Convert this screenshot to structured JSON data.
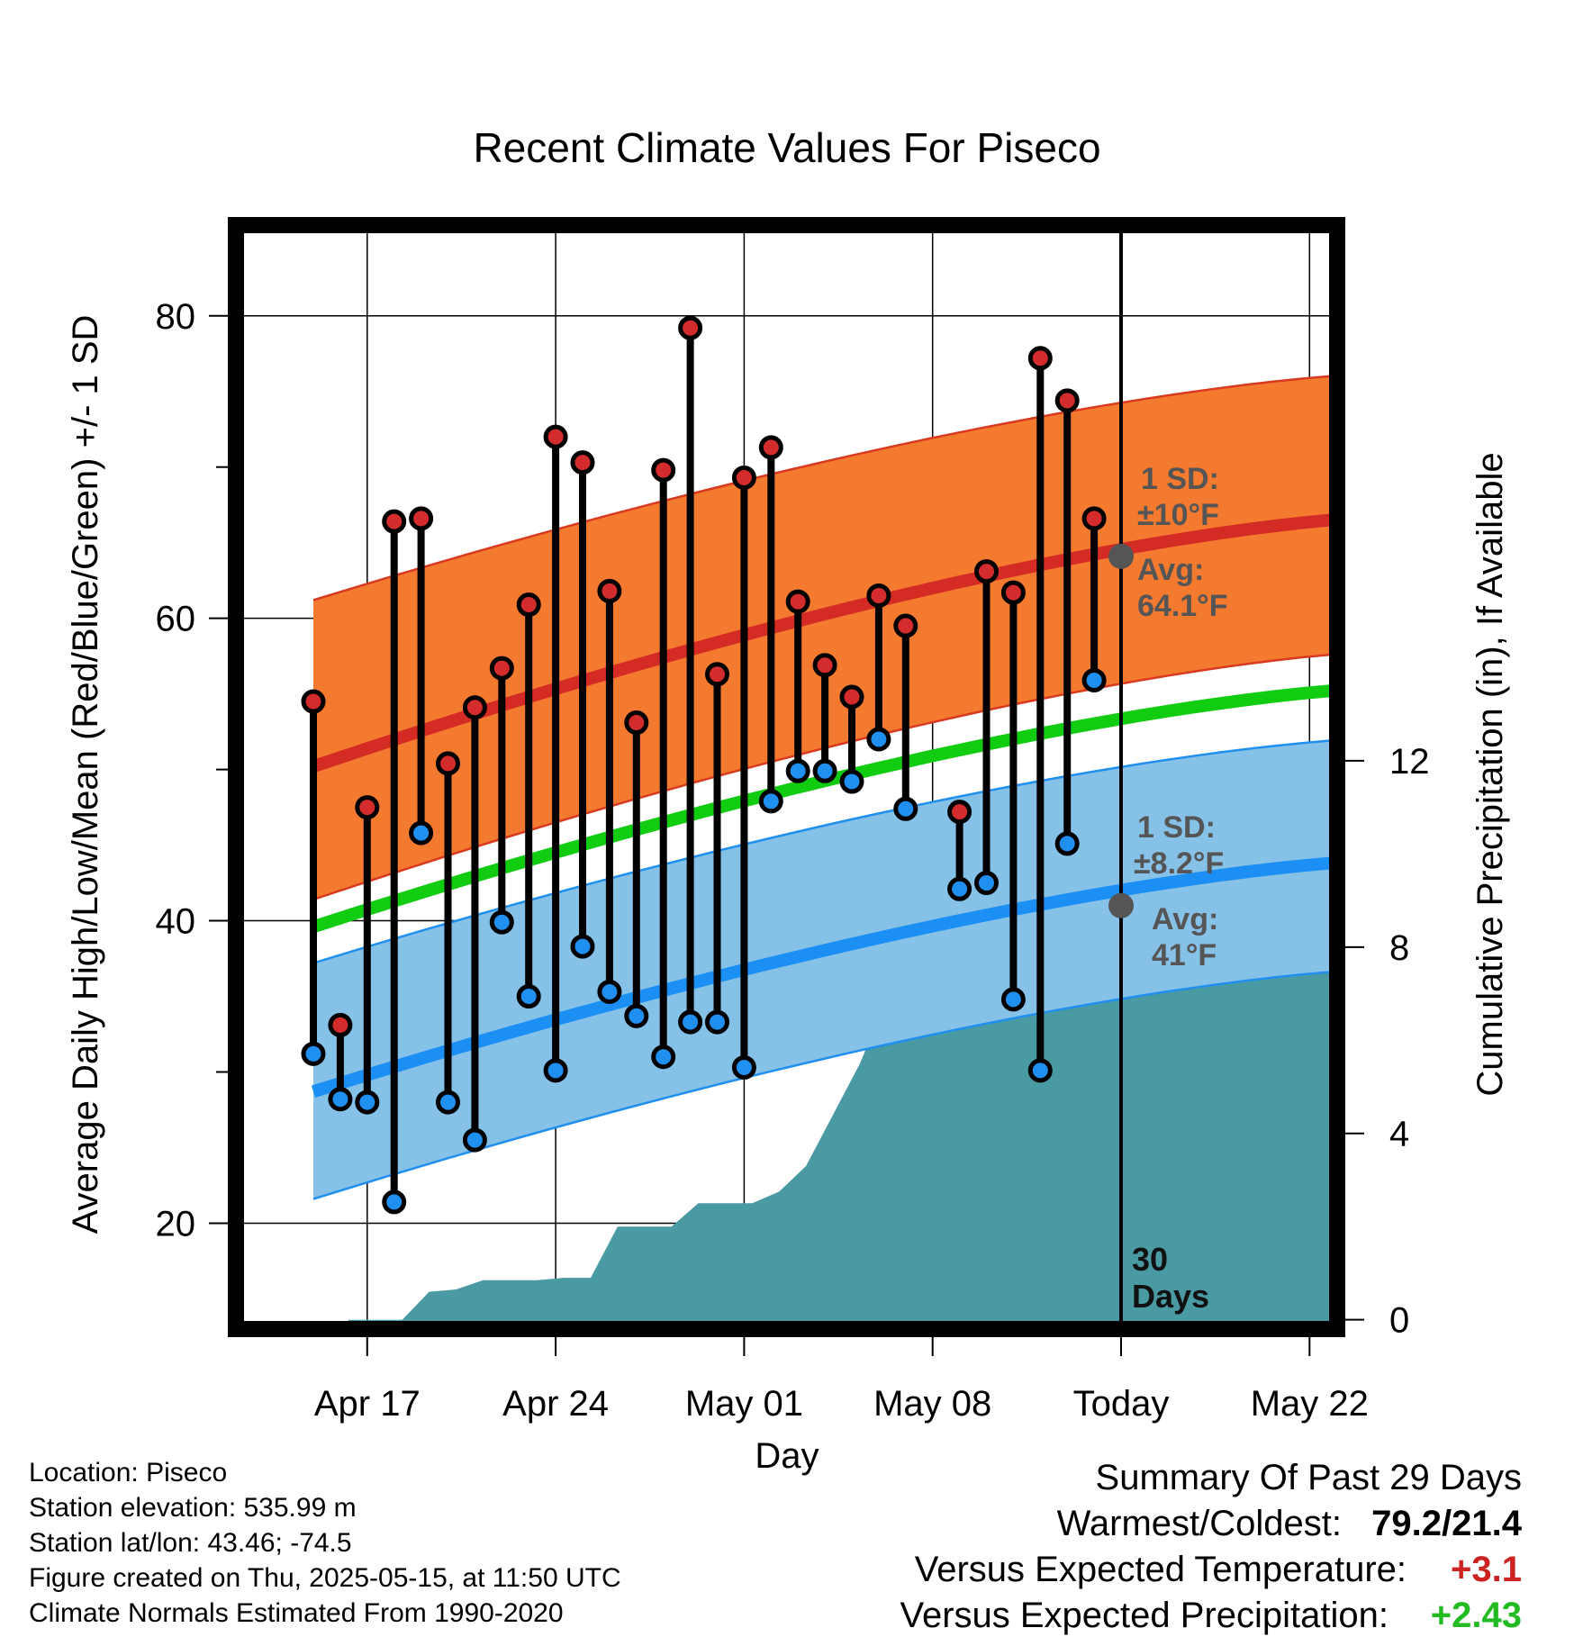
{
  "chart_data": {
    "type": "line",
    "title": "Recent Climate Values For Piseco",
    "xlabel": "Day",
    "ylabel": "Average Daily High/Low/Mean (Red/Blue/Green) +/- 1 SD",
    "y2label": "Cumulative Precipitation (in), If Available",
    "x_ticks": [
      {
        "day": 2,
        "label": "Apr 17"
      },
      {
        "day": 9,
        "label": "Apr 24"
      },
      {
        "day": 16,
        "label": "May 01"
      },
      {
        "day": 23,
        "label": "May 08"
      },
      {
        "day": 30,
        "label": "Today"
      },
      {
        "day": 37,
        "label": "May 22"
      }
    ],
    "x_range_days": [
      -0.7,
      39.7
    ],
    "ylim": [
      13,
      86
    ],
    "y_ticks": [
      20,
      40,
      60,
      80
    ],
    "y2lim": [
      -0.2,
      23.5
    ],
    "y2_ticks": [
      0,
      4,
      8,
      12
    ],
    "today_day": 30,
    "today_label_line1": "30",
    "today_label_line2": "Days",
    "normals": {
      "day_start": 0,
      "day_end": 39.7,
      "high_mean": [
        50.2,
        66.7
      ],
      "high_sd_band": [
        [
          41.4,
          61.2
        ],
        [
          57.8,
          76.2
        ]
      ],
      "low_mean": [
        28.7,
        44.0
      ],
      "low_sd_band": [
        [
          21.6,
          37.2
        ],
        [
          36.8,
          52.1
        ]
      ],
      "mean": [
        39.6,
        55.4
      ]
    },
    "annotations": {
      "high": {
        "sd_label": "1 SD:",
        "sd_value": "±10°F",
        "avg_label": "Avg:",
        "avg_value": "64.1°F",
        "avg": 64.1
      },
      "low": {
        "sd_label": "1 SD:",
        "sd_value": "±8.2°F",
        "avg_label": "Avg:",
        "avg_value": "41°F",
        "avg": 41.0
      }
    },
    "daily": [
      {
        "day": 0,
        "high": 54.5,
        "low": 31.2
      },
      {
        "day": 1,
        "high": 33.1,
        "low": 28.2
      },
      {
        "day": 2,
        "high": 47.5,
        "low": 28.0
      },
      {
        "day": 3,
        "high": 66.4,
        "low": 21.4
      },
      {
        "day": 4,
        "high": 66.6,
        "low": 45.8
      },
      {
        "day": 5,
        "high": 50.4,
        "low": 28.0
      },
      {
        "day": 6,
        "high": 54.1,
        "low": 25.5
      },
      {
        "day": 7,
        "high": 56.7,
        "low": 39.9
      },
      {
        "day": 8,
        "high": 60.9,
        "low": 35.0
      },
      {
        "day": 9,
        "high": 72.0,
        "low": 30.1
      },
      {
        "day": 10,
        "high": 70.3,
        "low": 38.3
      },
      {
        "day": 11,
        "high": 61.8,
        "low": 35.3
      },
      {
        "day": 12,
        "high": 53.1,
        "low": 33.7
      },
      {
        "day": 13,
        "high": 69.8,
        "low": 31.0
      },
      {
        "day": 14,
        "high": 79.2,
        "low": 33.3
      },
      {
        "day": 15,
        "high": 56.3,
        "low": 33.3
      },
      {
        "day": 16,
        "high": 69.3,
        "low": 30.3
      },
      {
        "day": 17,
        "high": 71.3,
        "low": 47.9
      },
      {
        "day": 18,
        "high": 61.1,
        "low": 49.9
      },
      {
        "day": 19,
        "high": 56.9,
        "low": 49.9
      },
      {
        "day": 20,
        "high": 54.8,
        "low": 49.2
      },
      {
        "day": 21,
        "high": 61.5,
        "low": 52.0
      },
      {
        "day": 22,
        "high": 59.5,
        "low": 47.4
      },
      {
        "day": 24,
        "high": 47.2,
        "low": 42.1
      },
      {
        "day": 25,
        "high": 63.1,
        "low": 42.5
      },
      {
        "day": 26,
        "high": 61.7,
        "low": 34.8
      },
      {
        "day": 27,
        "high": 77.2,
        "low": 30.1
      },
      {
        "day": 28,
        "high": 74.4,
        "low": 45.1
      },
      {
        "day": 29,
        "high": 66.6,
        "low": 55.9
      }
    ],
    "precip_cumulative": [
      {
        "day": 1.3,
        "value": 0
      },
      {
        "day": 2.3,
        "value": 0
      },
      {
        "day": 3.3,
        "value": 0
      },
      {
        "day": 4.3,
        "value": 0.6
      },
      {
        "day": 5.3,
        "value": 0.65
      },
      {
        "day": 6.3,
        "value": 0.85
      },
      {
        "day": 7.3,
        "value": 0.85
      },
      {
        "day": 8.3,
        "value": 0.85
      },
      {
        "day": 9.3,
        "value": 0.9
      },
      {
        "day": 10.3,
        "value": 0.9
      },
      {
        "day": 11.3,
        "value": 2.0
      },
      {
        "day": 12.3,
        "value": 2.0
      },
      {
        "day": 13.3,
        "value": 2.0
      },
      {
        "day": 14.3,
        "value": 2.5
      },
      {
        "day": 15.3,
        "value": 2.5
      },
      {
        "day": 16.3,
        "value": 2.5
      },
      {
        "day": 17.3,
        "value": 2.75
      },
      {
        "day": 18.3,
        "value": 3.3
      },
      {
        "day": 19.3,
        "value": 4.4
      },
      {
        "day": 20.3,
        "value": 5.5
      },
      {
        "day": 21.3,
        "value": 6.9
      },
      {
        "day": 22.3,
        "value": 7.0
      },
      {
        "day": 23.3,
        "value": 7.0
      },
      {
        "day": 24.3,
        "value": 7.95
      },
      {
        "day": 25.3,
        "value": 7.95
      },
      {
        "day": 26.3,
        "value": 7.95
      },
      {
        "day": 27.3,
        "value": 7.95
      },
      {
        "day": 28.3,
        "value": 7.95
      },
      {
        "day": 29.3,
        "value": 7.95
      },
      {
        "day": 30.3,
        "value": 7.95
      },
      {
        "day": 39.7,
        "value": 7.95
      }
    ],
    "colors": {
      "high_band": "#f47a30",
      "high_band_edge": "#d93a1f",
      "high_mean": "#d42c24",
      "low_band": "#86c1e7",
      "low_band_edge": "#1f8ff0",
      "low_mean": "#1c8ff5",
      "mean": "#11cc11",
      "precip": "#4a9aa3",
      "high_point": "#d42c2c",
      "low_point": "#1f8ff0",
      "annotation": "#555555"
    }
  },
  "footer": {
    "location": "Location: Piseco",
    "elevation": "Station elevation: 535.99 m",
    "latlon": "Station lat/lon: 43.46; -74.5",
    "created": "Figure created on Thu, 2025-05-15, at 11:50 UTC",
    "normals": "Climate Normals Estimated From 1990-2020"
  },
  "summary": {
    "heading": "Summary Of Past 29 Days",
    "warmest_label": "Warmest/Coldest:",
    "warmest_value": "79.2/21.4",
    "temp_label": "Versus Expected Temperature:",
    "temp_value": "+3.1",
    "precip_label": "Versus Expected Precipitation:",
    "precip_value": "+2.43"
  }
}
